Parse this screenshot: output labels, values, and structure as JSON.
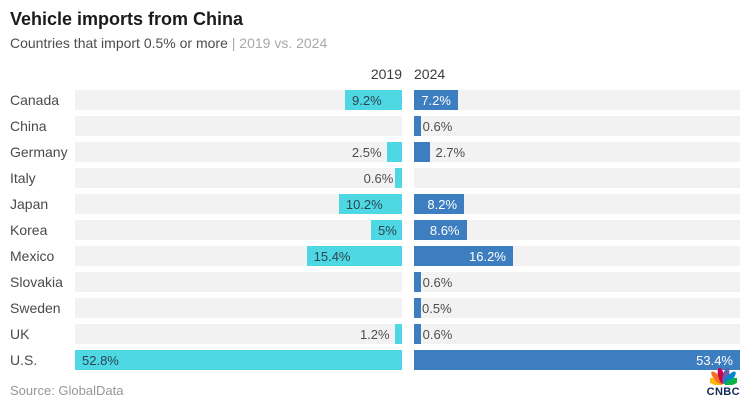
{
  "chart_data": {
    "type": "bar",
    "variant": "mirrored-horizontal-bars",
    "title": "Vehicle imports from China",
    "subtitle_main": "Countries that import 0.5% or more ",
    "subtitle_light": "| 2019 vs. 2024",
    "track_color": "#f2f2f2",
    "categories": [
      "Canada",
      "China",
      "Germany",
      "Italy",
      "Japan",
      "Korea",
      "Mexico",
      "Slovakia",
      "Sweden",
      "UK",
      "U.S."
    ],
    "series": [
      {
        "name": "2019",
        "color": "#4DD8E4",
        "axis_max": 52.8,
        "direction": "right-to-left",
        "values": [
          9.2,
          null,
          2.5,
          0.6,
          10.2,
          5,
          15.4,
          null,
          null,
          1.2,
          52.8
        ],
        "labels": [
          "9.2%",
          "",
          "2.5%",
          "0.6%",
          "10.2%",
          "5%",
          "15.4%",
          "",
          "",
          "1.2%",
          "52.8%"
        ]
      },
      {
        "name": "2024",
        "color": "#3D7EC0",
        "axis_max": 53.4,
        "direction": "left-to-right",
        "values": [
          7.2,
          0.6,
          2.7,
          null,
          8.2,
          8.6,
          16.2,
          0.6,
          0.5,
          0.6,
          53.4
        ],
        "labels": [
          "7.2%",
          "0.6%",
          "2.7%",
          "",
          "8.2%",
          "8.6%",
          "16.2%",
          "0.6%",
          "0.5%",
          "0.6%",
          "53.4%"
        ]
      }
    ],
    "inside_label_threshold": 5,
    "source": "Source: GlobalData",
    "brand": "CNBC"
  }
}
